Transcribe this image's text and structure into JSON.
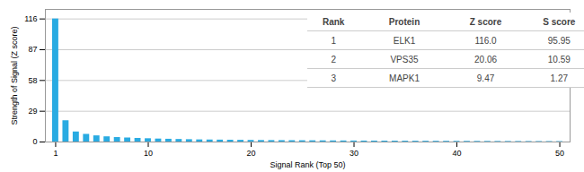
{
  "chart_data": {
    "type": "bar",
    "xlabel": "Signal Rank (Top 50)",
    "ylabel": "Strength of Signal (Z score)",
    "x": [
      1,
      2,
      3,
      4,
      5,
      6,
      7,
      8,
      9,
      10,
      11,
      12,
      13,
      14,
      15,
      16,
      17,
      18,
      19,
      20,
      21,
      22,
      23,
      24,
      25,
      26,
      27,
      28,
      29,
      30,
      31,
      32,
      33,
      34,
      35,
      36,
      37,
      38,
      39,
      40,
      41,
      42,
      43,
      44,
      45,
      46,
      47,
      48,
      49,
      50
    ],
    "values": [
      116.0,
      20.06,
      9.47,
      7.2,
      5.8,
      4.9,
      4.2,
      3.8,
      3.4,
      3.1,
      2.8,
      2.6,
      2.4,
      2.2,
      2.0,
      1.9,
      1.8,
      1.7,
      1.6,
      1.5,
      1.4,
      1.35,
      1.3,
      1.25,
      1.2,
      1.15,
      1.1,
      1.05,
      1.0,
      0.95,
      0.9,
      0.88,
      0.85,
      0.82,
      0.79,
      0.76,
      0.73,
      0.7,
      0.67,
      0.64,
      0.61,
      0.58,
      0.55,
      0.52,
      0.5,
      0.48,
      0.46,
      0.44,
      0.42,
      0.4
    ],
    "color": "#29ABE2",
    "xlim": [
      0,
      51
    ],
    "xticks": [
      1,
      10,
      20,
      30,
      40,
      50
    ],
    "ylim": [
      0,
      125
    ],
    "yticks": [
      0,
      29,
      58,
      87,
      116
    ],
    "grid": true,
    "table": {
      "headers": [
        "Rank",
        "Protein",
        "Z score",
        "S score"
      ],
      "rows": [
        [
          "1",
          "ELK1",
          "116.0",
          "95.95"
        ],
        [
          "2",
          "VPS35",
          "20.06",
          "10.59"
        ],
        [
          "3",
          "MAPK1",
          "9.47",
          "1.27"
        ]
      ]
    }
  }
}
